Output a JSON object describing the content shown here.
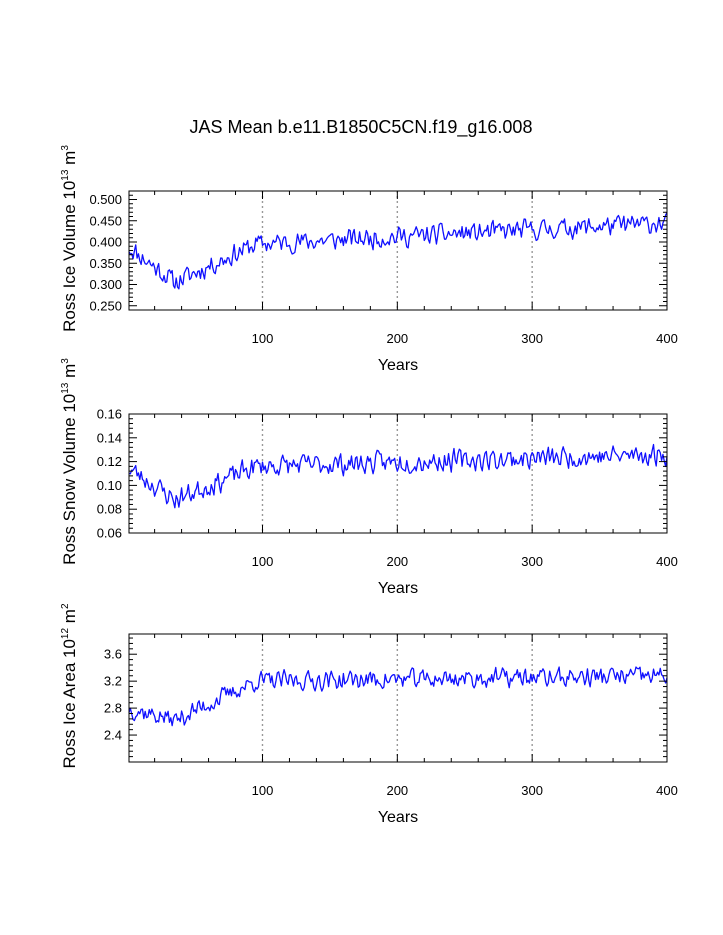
{
  "figure": {
    "title": "JAS Mean b.e11.B1850C5CN.f19_g16.008",
    "line_color": "#1010ff",
    "grid_color": "#999999"
  },
  "chart_data": [
    {
      "type": "line",
      "name": "ross-ice-volume",
      "ylabel_main": "Ross Ice Volume 10",
      "ylabel_exp": "13",
      "ylabel_unit": " m",
      "ylabel_unit_exp": "3",
      "xlabel": "Years",
      "xlim": [
        1,
        400
      ],
      "ylim": [
        0.24,
        0.52
      ],
      "xticks": [
        100,
        200,
        300,
        400
      ],
      "yticks": [
        0.25,
        0.3,
        0.35,
        0.4,
        0.45,
        0.5
      ],
      "ytick_labels": [
        "0.250",
        "0.300",
        "0.350",
        "0.400",
        "0.450",
        "0.500"
      ],
      "vlines": [
        100,
        200,
        300
      ],
      "shape": {
        "start": 0.39,
        "low": 0.305,
        "mid": 0.395,
        "end": 0.445,
        "noise": 0.045,
        "lo": 0.262,
        "hi": 0.516,
        "seed": 11
      }
    },
    {
      "type": "line",
      "name": "ross-snow-volume",
      "ylabel_main": "Ross Snow Volume 10",
      "ylabel_exp": "13",
      "ylabel_unit": " m",
      "ylabel_unit_exp": "3",
      "xlabel": "Years",
      "xlim": [
        1,
        400
      ],
      "ylim": [
        0.06,
        0.16
      ],
      "xticks": [
        100,
        200,
        300,
        400
      ],
      "yticks": [
        0.06,
        0.08,
        0.1,
        0.12,
        0.14,
        0.16
      ],
      "ytick_labels": [
        "0.06",
        "0.08",
        "0.10",
        "0.12",
        "0.14",
        "0.16"
      ],
      "vlines": [
        100,
        200,
        300
      ],
      "shape": {
        "start": 0.115,
        "low": 0.088,
        "mid": 0.116,
        "end": 0.126,
        "noise": 0.017,
        "lo": 0.068,
        "hi": 0.155,
        "seed": 23
      }
    },
    {
      "type": "line",
      "name": "ross-ice-area",
      "ylabel_main": "Ross Ice Area 10",
      "ylabel_exp": "12",
      "ylabel_unit": " m",
      "ylabel_unit_exp": "2",
      "xlabel": "Years",
      "xlim": [
        1,
        400
      ],
      "ylim": [
        2.0,
        3.9
      ],
      "xticks": [
        100,
        200,
        300,
        400
      ],
      "yticks": [
        2.4,
        2.8,
        3.2,
        3.6
      ],
      "ytick_labels": [
        "2.4",
        "2.8",
        "3.2",
        "3.6"
      ],
      "vlines": [
        100,
        200,
        300
      ],
      "shape": {
        "start": 2.8,
        "low": 2.62,
        "mid": 3.2,
        "end": 3.28,
        "noise": 0.27,
        "lo": 2.22,
        "hi": 3.7,
        "seed": 37
      }
    }
  ]
}
